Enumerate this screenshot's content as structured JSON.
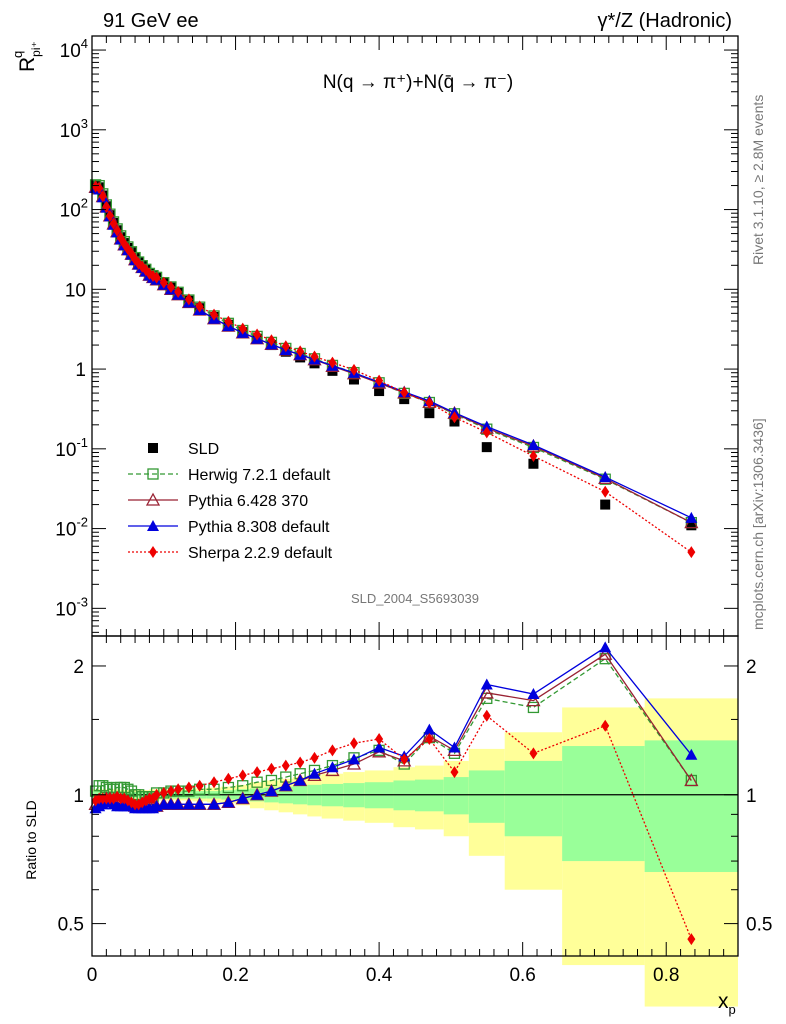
{
  "header": {
    "left": "91 GeV ee",
    "right": "γ*/Z (Hadronic)"
  },
  "side": {
    "rivet": "Rivet 3.1.10, ≥ 2.8M events",
    "mcplots": "mcplots.cern.ch [arXiv:1306.3436]"
  },
  "labels": {
    "ylabel_main": "R",
    "ylabel_main_sup": "q",
    "ylabel_main_sub": "pi⁺",
    "ylabel_ratio": "Ratio to SLD",
    "xlabel": "x",
    "xlabel_sub": "p",
    "inner_title": "N(q → π⁺)+N(q̄ → π⁻)",
    "analysis_id": "SLD_2004_S5693039"
  },
  "colors": {
    "sld": "#000000",
    "herwig": "#339933",
    "pythia6": "#992233",
    "pythia8": "#0000dd",
    "sherpa": "#ee0000",
    "band_inner": "#99ff99",
    "band_outer": "#ffff99"
  },
  "chart_data": [
    {
      "type": "scatter",
      "role": "main",
      "yscale": "log",
      "xlim": [
        0,
        0.9
      ],
      "ylim": [
        0.00045,
        15000
      ],
      "y_ticks": [
        {
          "label": "10",
          "exp": "-3"
        },
        {
          "label": "10",
          "exp": "-2"
        },
        {
          "label": "10",
          "exp": "-1"
        },
        {
          "label": "1",
          "exp": ""
        },
        {
          "label": "10",
          "exp": ""
        },
        {
          "label": "10",
          "exp": "2"
        },
        {
          "label": "10",
          "exp": "3"
        },
        {
          "label": "10",
          "exp": "4"
        }
      ],
      "x": [
        0.005,
        0.01,
        0.015,
        0.02,
        0.025,
        0.03,
        0.035,
        0.04,
        0.045,
        0.05,
        0.055,
        0.06,
        0.065,
        0.07,
        0.075,
        0.08,
        0.085,
        0.09,
        0.1,
        0.11,
        0.12,
        0.135,
        0.15,
        0.17,
        0.19,
        0.21,
        0.23,
        0.25,
        0.27,
        0.29,
        0.31,
        0.335,
        0.365,
        0.4,
        0.435,
        0.47,
        0.505,
        0.55,
        0.615,
        0.715,
        0.835
      ],
      "series": [
        {
          "name": "SLD",
          "marker": "filled-square",
          "values": [
            200,
            190,
            150,
            110,
            85,
            68,
            55,
            45,
            38,
            33,
            29,
            25,
            22,
            20,
            18,
            16,
            15,
            14,
            12,
            10.5,
            9.0,
            7.2,
            5.8,
            4.5,
            3.6,
            2.9,
            2.4,
            2.0,
            1.65,
            1.4,
            1.18,
            0.95,
            0.74,
            0.53,
            0.42,
            0.28,
            0.22,
            0.105,
            0.065,
            0.02,
            0.011
          ]
        },
        {
          "name": "Herwig 7.2.1 default",
          "marker": "open-square",
          "line": "dashed",
          "ratio": [
            1.02,
            1.05,
            1.05,
            1.04,
            1.03,
            1.03,
            1.04,
            1.04,
            1.04,
            1.03,
            1.02,
            1.0,
            1.0,
            0.99,
            0.99,
            0.99,
            0.99,
            1.01,
            1.01,
            1.02,
            1.02,
            1.02,
            1.03,
            1.03,
            1.04,
            1.05,
            1.07,
            1.08,
            1.1,
            1.12,
            1.14,
            1.17,
            1.22,
            1.27,
            1.18,
            1.36,
            1.25,
            1.68,
            1.6,
            2.08,
            1.08
          ]
        },
        {
          "name": "Pythia 6.428 370",
          "marker": "open-triangle",
          "line": "solid",
          "ratio": [
            0.95,
            0.96,
            0.97,
            0.98,
            0.98,
            0.97,
            0.96,
            0.95,
            0.95,
            0.95,
            0.95,
            0.94,
            0.94,
            0.94,
            0.94,
            0.94,
            0.94,
            0.94,
            0.95,
            0.95,
            0.95,
            0.95,
            0.95,
            0.95,
            0.96,
            0.98,
            1.0,
            1.02,
            1.05,
            1.08,
            1.11,
            1.14,
            1.18,
            1.26,
            1.2,
            1.37,
            1.27,
            1.73,
            1.66,
            2.13,
            1.08
          ]
        },
        {
          "name": "Pythia 8.308 default",
          "marker": "filled-triangle",
          "line": "solid",
          "ratio": [
            0.93,
            0.94,
            0.95,
            0.96,
            0.97,
            0.95,
            0.94,
            0.94,
            0.94,
            0.94,
            0.94,
            0.93,
            0.93,
            0.93,
            0.93,
            0.93,
            0.93,
            0.94,
            0.95,
            0.95,
            0.95,
            0.95,
            0.95,
            0.95,
            0.96,
            0.98,
            1.0,
            1.02,
            1.05,
            1.08,
            1.12,
            1.16,
            1.21,
            1.29,
            1.23,
            1.42,
            1.29,
            1.81,
            1.72,
            2.21,
            1.24
          ]
        },
        {
          "name": "Sherpa 2.2.9 default",
          "marker": "filled-diamond",
          "line": "dotted",
          "ratio": [
            0.97,
            0.98,
            0.98,
            0.98,
            0.98,
            0.98,
            0.99,
            0.98,
            0.98,
            0.97,
            0.96,
            0.95,
            0.95,
            0.96,
            0.97,
            0.98,
            0.98,
            1.0,
            1.01,
            1.02,
            1.03,
            1.04,
            1.05,
            1.07,
            1.09,
            1.11,
            1.13,
            1.15,
            1.17,
            1.19,
            1.22,
            1.27,
            1.32,
            1.35,
            1.21,
            1.35,
            1.13,
            1.53,
            1.25,
            1.45,
            0.46
          ]
        }
      ],
      "legend_position": "lower-left"
    },
    {
      "type": "scatter",
      "role": "ratio",
      "ylabel": "Ratio to SLD",
      "xlabel": "xp",
      "xlim": [
        0,
        0.9
      ],
      "ylim": [
        0.42,
        2.35
      ],
      "y_ticks": [
        0.5,
        1,
        2
      ],
      "x_ticks": [
        0,
        0.2,
        0.4,
        0.6,
        0.8
      ],
      "reference_line": 1,
      "bands": {
        "edges": [
          0,
          0.02,
          0.04,
          0.06,
          0.08,
          0.1,
          0.12,
          0.14,
          0.16,
          0.18,
          0.2,
          0.22,
          0.24,
          0.26,
          0.28,
          0.3,
          0.32,
          0.35,
          0.38,
          0.42,
          0.45,
          0.49,
          0.525,
          0.575,
          0.655,
          0.77,
          0.9
        ],
        "inner": [
          0.02,
          0.02,
          0.015,
          0.015,
          0.02,
          0.02,
          0.02,
          0.02,
          0.02,
          0.025,
          0.03,
          0.035,
          0.04,
          0.045,
          0.05,
          0.055,
          0.06,
          0.065,
          0.07,
          0.08,
          0.085,
          0.1,
          0.14,
          0.2,
          0.3,
          0.34
        ],
        "outer": [
          0.03,
          0.03,
          0.025,
          0.025,
          0.03,
          0.03,
          0.03,
          0.035,
          0.04,
          0.045,
          0.055,
          0.07,
          0.08,
          0.09,
          0.1,
          0.11,
          0.12,
          0.13,
          0.14,
          0.16,
          0.17,
          0.2,
          0.28,
          0.4,
          0.6,
          0.68
        ]
      }
    }
  ]
}
